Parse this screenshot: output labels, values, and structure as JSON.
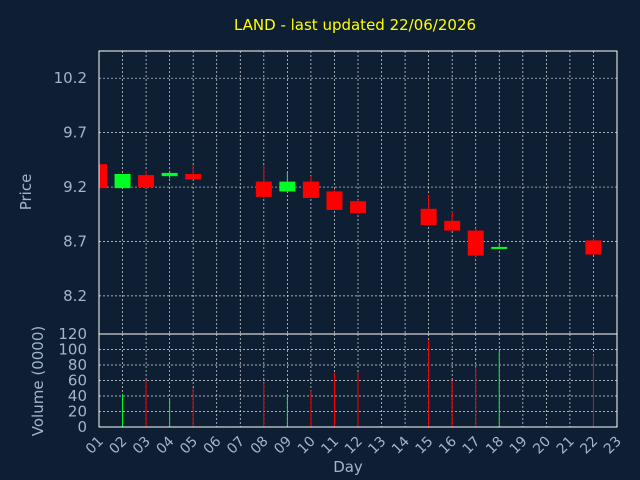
{
  "chart_data": {
    "type": "candlestick",
    "title": "LAND - last updated 22/06/2026",
    "ylabel": "Price",
    "volume_label": "Volume (0000)",
    "xlabel": "Day",
    "x_ticks": [
      "01",
      "02",
      "03",
      "04",
      "05",
      "06",
      "07",
      "08",
      "09",
      "10",
      "11",
      "12",
      "13",
      "14",
      "15",
      "16",
      "17",
      "18",
      "19",
      "20",
      "21",
      "22",
      "23"
    ],
    "price_ticks": [
      "8.2",
      "8.7",
      "9.2",
      "9.7",
      "10.2"
    ],
    "price_tick_values": [
      8.2,
      8.7,
      9.2,
      9.7,
      10.2
    ],
    "price_range": [
      7.85,
      10.45
    ],
    "volume_ticks": [
      "0",
      "20",
      "40",
      "60",
      "80",
      "100",
      "120"
    ],
    "volume_tick_values": [
      0,
      20,
      40,
      60,
      80,
      100,
      120
    ],
    "volume_range": [
      0,
      120
    ],
    "grid": true,
    "colors": {
      "background": "#0f1f33",
      "up": "#00ff22",
      "down": "#ff0000",
      "title": "#ffff00",
      "axis_text": "#9fb6cc"
    },
    "candles": [
      {
        "day": 1,
        "open": 9.41,
        "high": 9.43,
        "low": 9.19,
        "close": 9.19,
        "volume": 0
      },
      {
        "day": 2,
        "open": 9.19,
        "high": 9.32,
        "low": 9.19,
        "close": 9.32,
        "volume": 42
      },
      {
        "day": 3,
        "open": 9.31,
        "high": 9.35,
        "low": 9.19,
        "close": 9.2,
        "volume": 60
      },
      {
        "day": 4,
        "open": 9.3,
        "high": 9.35,
        "low": 9.28,
        "close": 9.33,
        "volume": 37
      },
      {
        "day": 5,
        "open": 9.32,
        "high": 9.4,
        "low": 9.27,
        "close": 9.27,
        "volume": 50
      },
      {
        "day": 8,
        "open": 9.25,
        "high": 9.4,
        "low": 9.1,
        "close": 9.11,
        "volume": 57
      },
      {
        "day": 9,
        "open": 9.16,
        "high": 9.33,
        "low": 9.15,
        "close": 9.25,
        "volume": 42
      },
      {
        "day": 10,
        "open": 9.25,
        "high": 9.3,
        "low": 9.1,
        "close": 9.1,
        "volume": 47
      },
      {
        "day": 11,
        "open": 9.16,
        "high": 9.18,
        "low": 8.99,
        "close": 8.99,
        "volume": 70
      },
      {
        "day": 12,
        "open": 9.07,
        "high": 9.08,
        "low": 8.96,
        "close": 8.96,
        "volume": 70
      },
      {
        "day": 15,
        "open": 9.0,
        "high": 9.13,
        "low": 8.85,
        "close": 8.85,
        "volume": 112
      },
      {
        "day": 16,
        "open": 8.89,
        "high": 8.98,
        "low": 8.8,
        "close": 8.8,
        "volume": 60
      },
      {
        "day": 17,
        "open": 8.8,
        "high": 8.82,
        "low": 8.55,
        "close": 8.57,
        "volume": 77
      },
      {
        "day": 18,
        "open": 8.64,
        "high": 8.68,
        "low": 8.64,
        "close": 8.65,
        "volume": 97
      },
      {
        "day": 22,
        "open": 8.71,
        "high": 8.73,
        "low": 8.58,
        "close": 8.58,
        "volume": 93
      }
    ]
  }
}
